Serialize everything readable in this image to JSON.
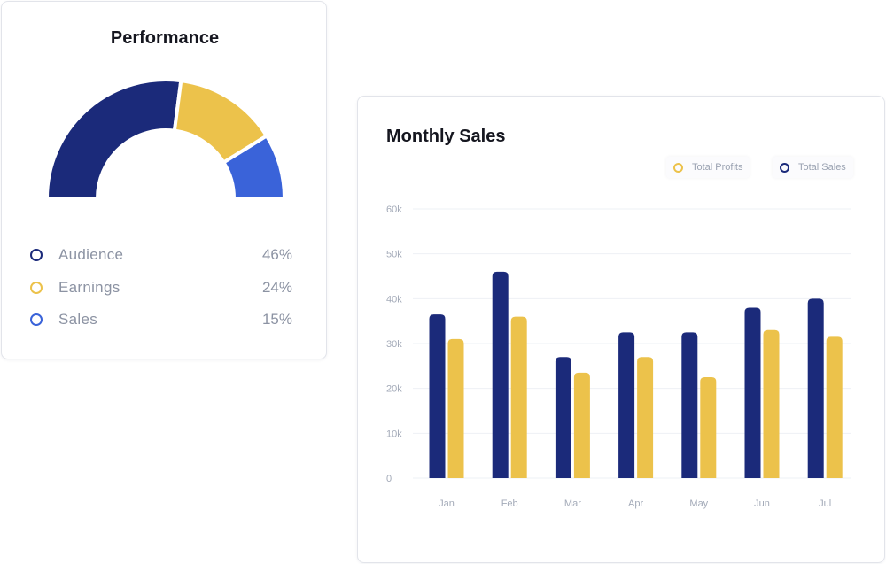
{
  "performance": {
    "title": "Performance",
    "items": [
      {
        "label": "Audience",
        "value": "46%",
        "color": "#1b2a7a"
      },
      {
        "label": "Earnings",
        "value": "24%",
        "color": "#ecc24b"
      },
      {
        "label": "Sales",
        "value": "15%",
        "color": "#3a63d9"
      }
    ]
  },
  "monthly_sales": {
    "title": "Monthly Sales",
    "series_legend": [
      {
        "label": "Total Profits",
        "color": "#ecc24b"
      },
      {
        "label": "Total Sales",
        "color": "#1b2a7a"
      }
    ]
  },
  "chart_data": [
    {
      "type": "pie",
      "variant": "half-donut",
      "title": "Performance",
      "categories": [
        "Audience",
        "Earnings",
        "Sales"
      ],
      "values": [
        46,
        24,
        15
      ],
      "colors": [
        "#1b2a7a",
        "#ecc24b",
        "#3a63d9"
      ],
      "legend_placement": "bottom"
    },
    {
      "type": "bar",
      "title": "Monthly Sales",
      "categories": [
        "Jan",
        "Feb",
        "Mar",
        "Apr",
        "May",
        "Jun",
        "Jul"
      ],
      "series": [
        {
          "name": "Total Sales",
          "values": [
            36500,
            46000,
            27000,
            32500,
            32500,
            38000,
            40000
          ],
          "color": "#1b2a7a"
        },
        {
          "name": "Total Profits",
          "values": [
            31000,
            36000,
            23500,
            27000,
            22500,
            33000,
            31500
          ],
          "color": "#ecc24b"
        }
      ],
      "y_ticks": [
        "0",
        "10k",
        "20k",
        "30k",
        "40k",
        "50k",
        "60k"
      ],
      "ylim": [
        0,
        60000
      ],
      "grid": true,
      "legend_placement": "top-right"
    }
  ]
}
